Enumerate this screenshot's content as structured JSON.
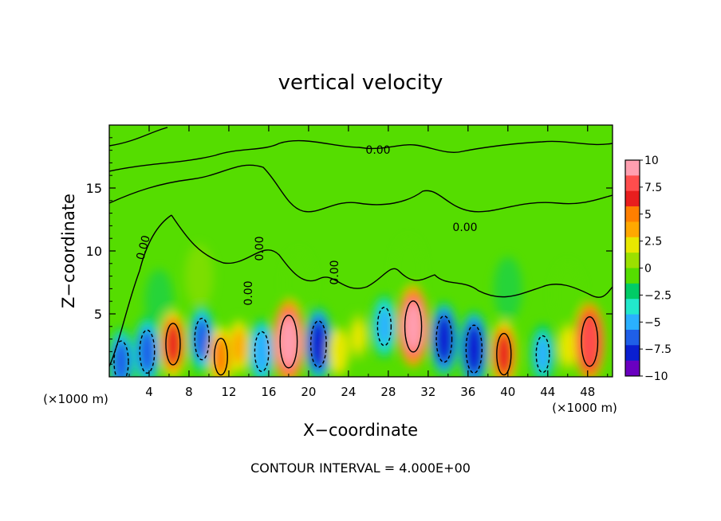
{
  "chart_data": {
    "type": "heatmap",
    "title": "vertical velocity",
    "xlabel": "X−coordinate",
    "ylabel": "Z−coordinate",
    "x_unit_left": "(×1000 m)",
    "x_unit_right": "(×1000 m)",
    "xlim": [
      0,
      50.5
    ],
    "ylim": [
      0,
      20
    ],
    "x_ticks": [
      4,
      8,
      12,
      16,
      20,
      24,
      28,
      32,
      36,
      40,
      44,
      48
    ],
    "y_ticks": [
      5,
      10,
      15
    ],
    "colorbar": {
      "range": [
        -10,
        10
      ],
      "ticks": [
        "10",
        "7.5",
        "5",
        "2.5",
        "0",
        "−2.5",
        "−5",
        "−7.5",
        "−10"
      ],
      "colors": [
        "#ff9fb0",
        "#ff4d4d",
        "#e81e1e",
        "#ff7f00",
        "#ffa800",
        "#e8e800",
        "#9be000",
        "#55dd00",
        "#00cc66",
        "#22e8cc",
        "#2ab0ff",
        "#1f5fe8",
        "#0a1fd0",
        "#6a00c0"
      ]
    },
    "contour_label": "0.00",
    "contour_interval_text": "CONTOUR INTERVAL = 4.000E+00",
    "cells": [
      {
        "x": 1.2,
        "z": 1.2,
        "w": -6.0
      },
      {
        "x": 3.8,
        "z": 2.0,
        "w": -6.5
      },
      {
        "x": 6.4,
        "z": 2.6,
        "w": 6.0
      },
      {
        "x": 9.3,
        "z": 3.0,
        "w": -6.0
      },
      {
        "x": 11.2,
        "z": 1.6,
        "w": 4.5
      },
      {
        "x": 13.0,
        "z": 2.4,
        "w": 3.5
      },
      {
        "x": 15.3,
        "z": 2.0,
        "w": -5.5
      },
      {
        "x": 18.0,
        "z": 2.8,
        "w": 9.5
      },
      {
        "x": 21.0,
        "z": 2.6,
        "w": -7.5
      },
      {
        "x": 23.0,
        "z": 2.0,
        "w": 2.5
      },
      {
        "x": 25.0,
        "z": 3.2,
        "w": 1.5
      },
      {
        "x": 27.6,
        "z": 4.0,
        "w": -5.0
      },
      {
        "x": 30.5,
        "z": 4.0,
        "w": 9.0
      },
      {
        "x": 33.6,
        "z": 3.0,
        "w": -7.5
      },
      {
        "x": 36.6,
        "z": 2.2,
        "w": -8.0
      },
      {
        "x": 39.6,
        "z": 1.8,
        "w": 6.0
      },
      {
        "x": 43.5,
        "z": 1.8,
        "w": -4.5
      },
      {
        "x": 46.0,
        "z": 2.4,
        "w": 2.0
      },
      {
        "x": 48.2,
        "z": 2.8,
        "w": 8.5
      }
    ]
  }
}
